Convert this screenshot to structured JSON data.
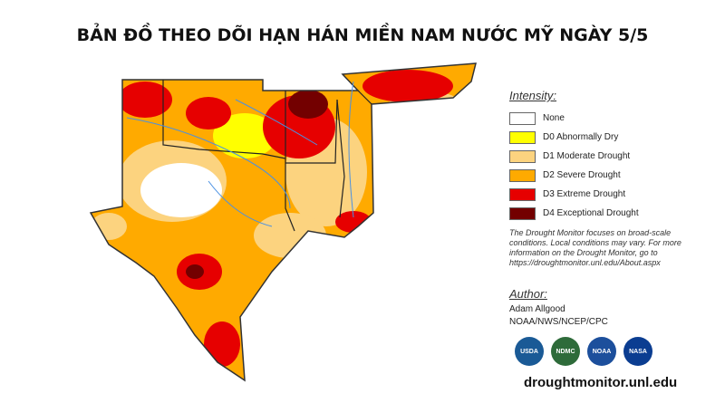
{
  "title": "BẢN ĐỒ THEO DÕI HẠN HÁN MIỀN NAM NƯỚC MỸ NGÀY 5/5",
  "legend": {
    "heading": "Intensity:",
    "items": [
      {
        "label": "None",
        "color": "#ffffff"
      },
      {
        "label": "D0 Abnormally Dry",
        "color": "#ffff00"
      },
      {
        "label": "D1 Moderate Drought",
        "color": "#fcd37f"
      },
      {
        "label": "D2 Severe Drought",
        "color": "#ffaa00"
      },
      {
        "label": "D3 Extreme Drought",
        "color": "#e60000"
      },
      {
        "label": "D4 Exceptional Drought",
        "color": "#730000"
      }
    ]
  },
  "note": "The Drought Monitor focuses on broad-scale conditions. Local conditions may vary. For more information on the Drought Monitor, go to https://droughtmonitor.unl.edu/About.aspx",
  "author": {
    "heading": "Author:",
    "name": "Adam Allgood",
    "org": "NOAA/NWS/NCEP/CPC"
  },
  "logos": [
    "USDA",
    "NDMC",
    "NOAA",
    "NASA"
  ],
  "url": "droughtmonitor.unl.edu"
}
